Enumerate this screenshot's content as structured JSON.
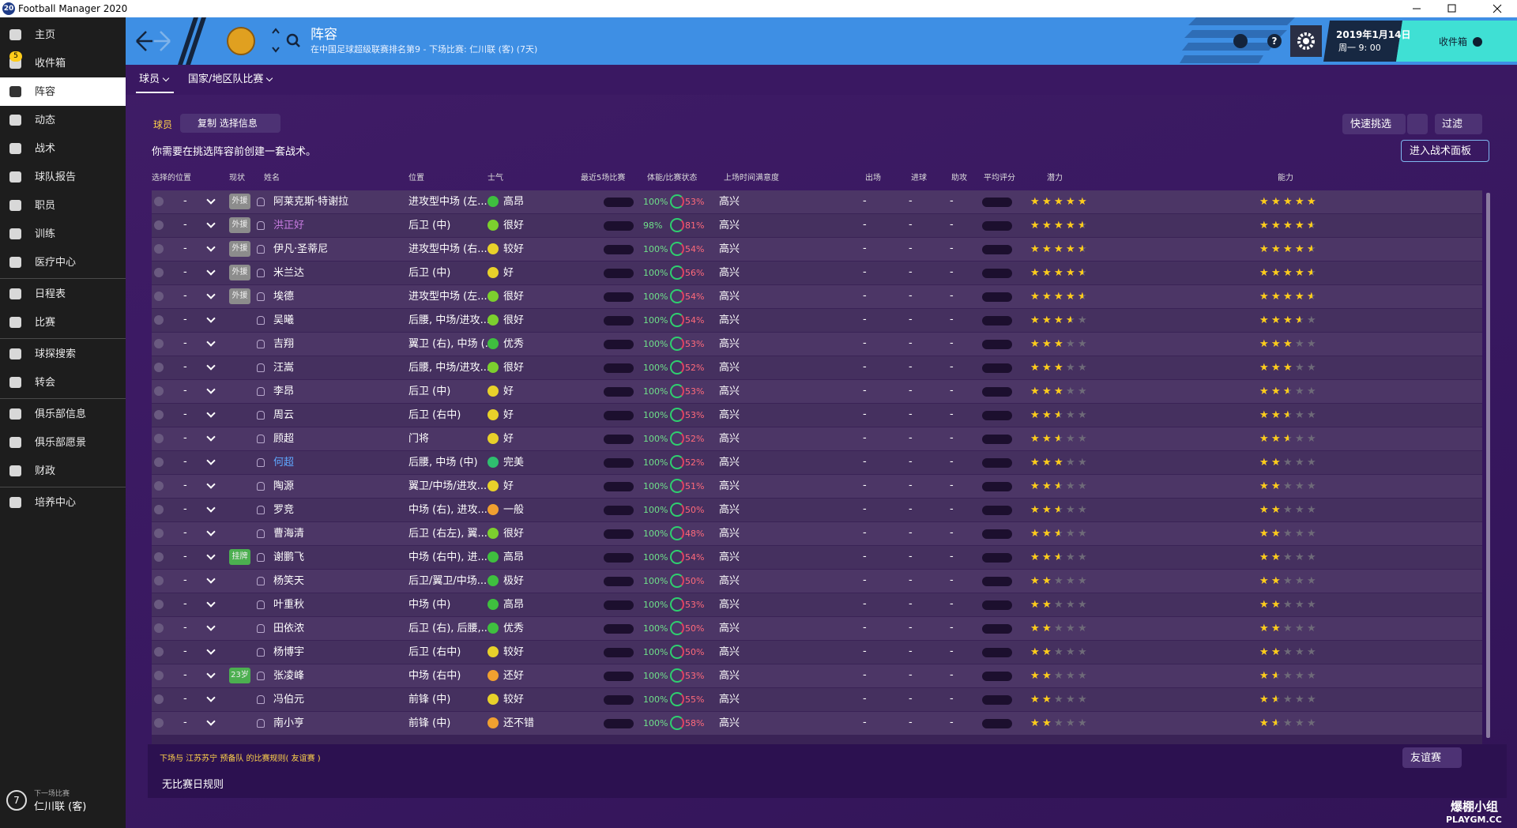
{
  "window": {
    "app_icon": "20",
    "title": "Football Manager 2020"
  },
  "sidebar": {
    "sections": [
      [
        {
          "label": "主页"
        },
        {
          "label": "收件箱",
          "badge": "5"
        },
        {
          "label": "阵容",
          "active": true
        },
        {
          "label": "动态"
        },
        {
          "label": "战术"
        },
        {
          "label": "球队报告"
        },
        {
          "label": "职员"
        },
        {
          "label": "训练"
        },
        {
          "label": "医疗中心"
        }
      ],
      [
        {
          "label": "日程表"
        },
        {
          "label": "比赛"
        }
      ],
      [
        {
          "label": "球探搜索"
        },
        {
          "label": "转会"
        }
      ],
      [
        {
          "label": "俱乐部信息"
        },
        {
          "label": "俱乐部愿景"
        },
        {
          "label": "财政"
        }
      ],
      [
        {
          "label": "培养中心"
        }
      ]
    ],
    "next_match": {
      "days": "7",
      "caption": "下一场比赛",
      "opponent": "仁川联 (客)"
    }
  },
  "header": {
    "title": "阵容",
    "subtitle": "在中国足球超级联赛排名第9 - 下场比赛: 仁川联 (客) (7天)",
    "date": "2019年1月14日",
    "time": "周一 9: 00",
    "inbox": "收件箱"
  },
  "tabs": [
    {
      "label": "球员",
      "active": true
    },
    {
      "label": "国家/地区队比赛"
    }
  ],
  "toolbar": {
    "section": "球员",
    "copy_button": "复制 选择信息",
    "quick_pick": "快速挑选",
    "filter": "过滤",
    "tactics_button": "进入战术面板",
    "notice": "你需要在挑选阵容前创建一套战术。"
  },
  "table": {
    "columns": [
      "选择的位置",
      "现状",
      "姓名",
      "位置",
      "士气",
      "最近5场比赛",
      "体能/比赛状态",
      "上场时间满意度",
      "出场",
      "进球",
      "助攻",
      "平均评分",
      "潜力",
      "能力"
    ],
    "rows": [
      {
        "sel": "-",
        "status": "外援",
        "status_color": "#8c8c8c",
        "name": "阿莱克斯·特谢拉",
        "position": "进攻型中场 (左...",
        "morale": "高昂",
        "morale_color": "#3fbf3f",
        "fitness": "100%",
        "condition": "53%",
        "satisfaction": "高兴",
        "apps": "-",
        "goals": "-",
        "assists": "-",
        "potential": 5,
        "ability": 5
      },
      {
        "sel": "-",
        "status": "外援",
        "status_color": "#8c8c8c",
        "name": "洪正好",
        "name_color": "#c77be0",
        "position": "后卫 (中)",
        "morale": "很好",
        "morale_color": "#7ccf2e",
        "fitness": "98%",
        "condition": "81%",
        "satisfaction": "高兴",
        "apps": "-",
        "goals": "-",
        "assists": "-",
        "potential": 4.5,
        "ability": 4.5
      },
      {
        "sel": "-",
        "status": "外援",
        "status_color": "#8c8c8c",
        "name": "伊凡·圣蒂尼",
        "position": "进攻型中场 (右...",
        "morale": "较好",
        "morale_color": "#e8d12a",
        "fitness": "100%",
        "condition": "54%",
        "satisfaction": "高兴",
        "apps": "-",
        "goals": "-",
        "assists": "-",
        "potential": 4.5,
        "ability": 4.5
      },
      {
        "sel": "-",
        "status": "外援",
        "status_color": "#8c8c8c",
        "name": "米兰达",
        "position": "后卫 (中)",
        "morale": "好",
        "morale_color": "#e8d12a",
        "fitness": "100%",
        "condition": "56%",
        "satisfaction": "高兴",
        "apps": "-",
        "goals": "-",
        "assists": "-",
        "potential": 4.5,
        "ability": 4.5
      },
      {
        "sel": "-",
        "status": "外援",
        "status_color": "#8c8c8c",
        "name": "埃德",
        "position": "进攻型中场 (左...",
        "morale": "很好",
        "morale_color": "#7ccf2e",
        "fitness": "100%",
        "condition": "54%",
        "satisfaction": "高兴",
        "apps": "-",
        "goals": "-",
        "assists": "-",
        "potential": 4.5,
        "ability": 4.5
      },
      {
        "sel": "-",
        "name": "吴曦",
        "position": "后腰, 中场/进攻...",
        "morale": "很好",
        "morale_color": "#7ccf2e",
        "fitness": "100%",
        "condition": "54%",
        "satisfaction": "高兴",
        "apps": "-",
        "goals": "-",
        "assists": "-",
        "potential": 3.5,
        "ability": 3.5
      },
      {
        "sel": "-",
        "name": "吉翔",
        "position": "翼卫 (右), 中场 (...",
        "morale": "优秀",
        "morale_color": "#3fbf3f",
        "fitness": "100%",
        "condition": "53%",
        "satisfaction": "高兴",
        "apps": "-",
        "goals": "-",
        "assists": "-",
        "potential": 3,
        "ability": 3
      },
      {
        "sel": "-",
        "name": "汪嵩",
        "position": "后腰, 中场/进攻...",
        "morale": "很好",
        "morale_color": "#7ccf2e",
        "fitness": "100%",
        "condition": "52%",
        "satisfaction": "高兴",
        "apps": "-",
        "goals": "-",
        "assists": "-",
        "potential": 3,
        "ability": 3
      },
      {
        "sel": "-",
        "name": "李昂",
        "position": "后卫 (中)",
        "morale": "好",
        "morale_color": "#e8d12a",
        "fitness": "100%",
        "condition": "53%",
        "satisfaction": "高兴",
        "apps": "-",
        "goals": "-",
        "assists": "-",
        "potential": 3,
        "ability": 2.5
      },
      {
        "sel": "-",
        "name": "周云",
        "position": "后卫 (右中)",
        "morale": "好",
        "morale_color": "#e8d12a",
        "fitness": "100%",
        "condition": "53%",
        "satisfaction": "高兴",
        "apps": "-",
        "goals": "-",
        "assists": "-",
        "potential": 2.5,
        "ability": 2.5
      },
      {
        "sel": "-",
        "name": "顾超",
        "position": "门将",
        "morale": "好",
        "morale_color": "#e8d12a",
        "fitness": "100%",
        "condition": "52%",
        "satisfaction": "高兴",
        "apps": "-",
        "goals": "-",
        "assists": "-",
        "potential": 2.5,
        "ability": 2.5
      },
      {
        "sel": "-",
        "name": "何超",
        "name_color": "#5fa8ff",
        "position": "后腰, 中场 (中)",
        "morale": "完美",
        "morale_color": "#2fbf6f",
        "fitness": "100%",
        "condition": "52%",
        "satisfaction": "高兴",
        "apps": "-",
        "goals": "-",
        "assists": "-",
        "potential": 3,
        "ability": 2
      },
      {
        "sel": "-",
        "name": "陶源",
        "position": "翼卫/中场/进攻...",
        "morale": "好",
        "morale_color": "#e8d12a",
        "fitness": "100%",
        "condition": "51%",
        "satisfaction": "高兴",
        "apps": "-",
        "goals": "-",
        "assists": "-",
        "potential": 2.5,
        "ability": 2
      },
      {
        "sel": "-",
        "name": "罗竞",
        "position": "中场 (右), 进攻...",
        "morale": "一般",
        "morale_color": "#f0a030",
        "fitness": "100%",
        "condition": "50%",
        "satisfaction": "高兴",
        "apps": "-",
        "goals": "-",
        "assists": "-",
        "potential": 2.5,
        "ability": 2
      },
      {
        "sel": "-",
        "name": "曹海清",
        "position": "后卫 (右左), 翼...",
        "morale": "很好",
        "morale_color": "#7ccf2e",
        "fitness": "100%",
        "condition": "48%",
        "satisfaction": "高兴",
        "apps": "-",
        "goals": "-",
        "assists": "-",
        "potential": 2.5,
        "ability": 2
      },
      {
        "sel": "-",
        "status": "挂牌",
        "status_color": "#4caf50",
        "name": "谢鹏飞",
        "position": "中场 (右中), 进...",
        "morale": "高昂",
        "morale_color": "#3fbf3f",
        "fitness": "100%",
        "condition": "54%",
        "satisfaction": "高兴",
        "apps": "-",
        "goals": "-",
        "assists": "-",
        "potential": 2.5,
        "ability": 2
      },
      {
        "sel": "-",
        "name": "杨笑天",
        "position": "后卫/翼卫/中场...",
        "morale": "极好",
        "morale_color": "#3fbf3f",
        "fitness": "100%",
        "condition": "50%",
        "satisfaction": "高兴",
        "apps": "-",
        "goals": "-",
        "assists": "-",
        "potential": 2,
        "ability": 2
      },
      {
        "sel": "-",
        "name": "叶重秋",
        "position": "中场 (中)",
        "morale": "高昂",
        "morale_color": "#3fbf3f",
        "fitness": "100%",
        "condition": "53%",
        "satisfaction": "高兴",
        "apps": "-",
        "goals": "-",
        "assists": "-",
        "potential": 2,
        "ability": 2
      },
      {
        "sel": "-",
        "name": "田依浓",
        "position": "后卫 (右), 后腰,...",
        "morale": "优秀",
        "morale_color": "#3fbf3f",
        "fitness": "100%",
        "condition": "50%",
        "satisfaction": "高兴",
        "apps": "-",
        "goals": "-",
        "assists": "-",
        "potential": 2,
        "ability": 2
      },
      {
        "sel": "-",
        "name": "杨博宇",
        "position": "后卫 (右中)",
        "morale": "较好",
        "morale_color": "#e8d12a",
        "fitness": "100%",
        "condition": "50%",
        "satisfaction": "高兴",
        "apps": "-",
        "goals": "-",
        "assists": "-",
        "potential": 2,
        "ability": 2
      },
      {
        "sel": "-",
        "status": "23岁",
        "status_color": "#4caf50",
        "name": "张凌峰",
        "position": "中场 (右中)",
        "morale": "还好",
        "morale_color": "#f0a030",
        "fitness": "100%",
        "condition": "53%",
        "satisfaction": "高兴",
        "apps": "-",
        "goals": "-",
        "assists": "-",
        "potential": 2,
        "ability": 1.5
      },
      {
        "sel": "-",
        "name": "冯伯元",
        "position": "前锋 (中)",
        "morale": "较好",
        "morale_color": "#e8d12a",
        "fitness": "100%",
        "condition": "55%",
        "satisfaction": "高兴",
        "apps": "-",
        "goals": "-",
        "assists": "-",
        "potential": 2,
        "ability": 1.5
      },
      {
        "sel": "-",
        "name": "南小亨",
        "position": "前锋 (中)",
        "morale": "还不错",
        "morale_color": "#f0a030",
        "fitness": "100%",
        "condition": "58%",
        "satisfaction": "高兴",
        "apps": "-",
        "goals": "-",
        "assists": "-",
        "potential": 2,
        "ability": 1.5
      }
    ]
  },
  "footer": {
    "rules_title": "下场与 江苏苏宁 预备队 的比赛规则( 友谊赛 )",
    "match_type": "友谊赛",
    "rules_text": "无比赛日规则"
  },
  "watermark": {
    "line1": "爆棚小组",
    "line2": "PLAYGM.CC"
  }
}
